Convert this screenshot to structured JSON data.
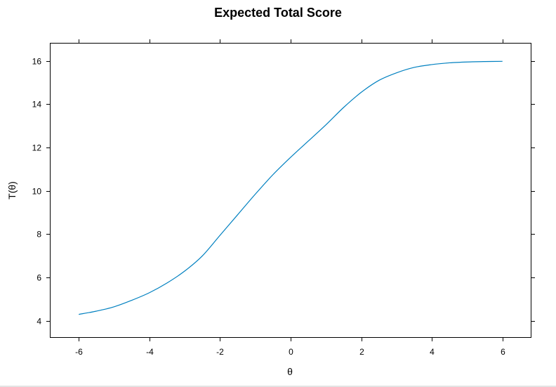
{
  "chart_data": {
    "type": "line",
    "title": "Expected Total Score",
    "xlabel": "θ",
    "ylabel": "T(θ)",
    "xlim": [
      -6.8,
      6.8
    ],
    "ylim": [
      3.25,
      16.8
    ],
    "x_ticks": [
      -6,
      -4,
      -2,
      0,
      2,
      4,
      6
    ],
    "x_tick_labels": [
      "-6",
      "-4",
      "-2",
      "0",
      "2",
      "4",
      "6"
    ],
    "y_ticks": [
      4,
      6,
      8,
      10,
      12,
      14,
      16
    ],
    "y_tick_labels": [
      "4",
      "6",
      "8",
      "10",
      "12",
      "14",
      "16"
    ],
    "grid": false,
    "ticks_on_all_sides": true,
    "series": [
      {
        "color": "#0080c0",
        "x": [
          -6,
          -5.5,
          -5,
          -4.5,
          -4,
          -3.5,
          -3,
          -2.5,
          -2,
          -1.5,
          -1,
          -0.5,
          0,
          0.5,
          1,
          1.5,
          2,
          2.5,
          3,
          3.5,
          4,
          4.5,
          5,
          5.5,
          6
        ],
        "y": [
          4.3,
          4.45,
          4.65,
          4.95,
          5.3,
          5.75,
          6.3,
          7.0,
          7.95,
          8.9,
          9.85,
          10.75,
          11.55,
          12.3,
          13.05,
          13.85,
          14.55,
          15.1,
          15.45,
          15.7,
          15.83,
          15.91,
          15.95,
          15.97,
          15.98
        ]
      }
    ]
  }
}
